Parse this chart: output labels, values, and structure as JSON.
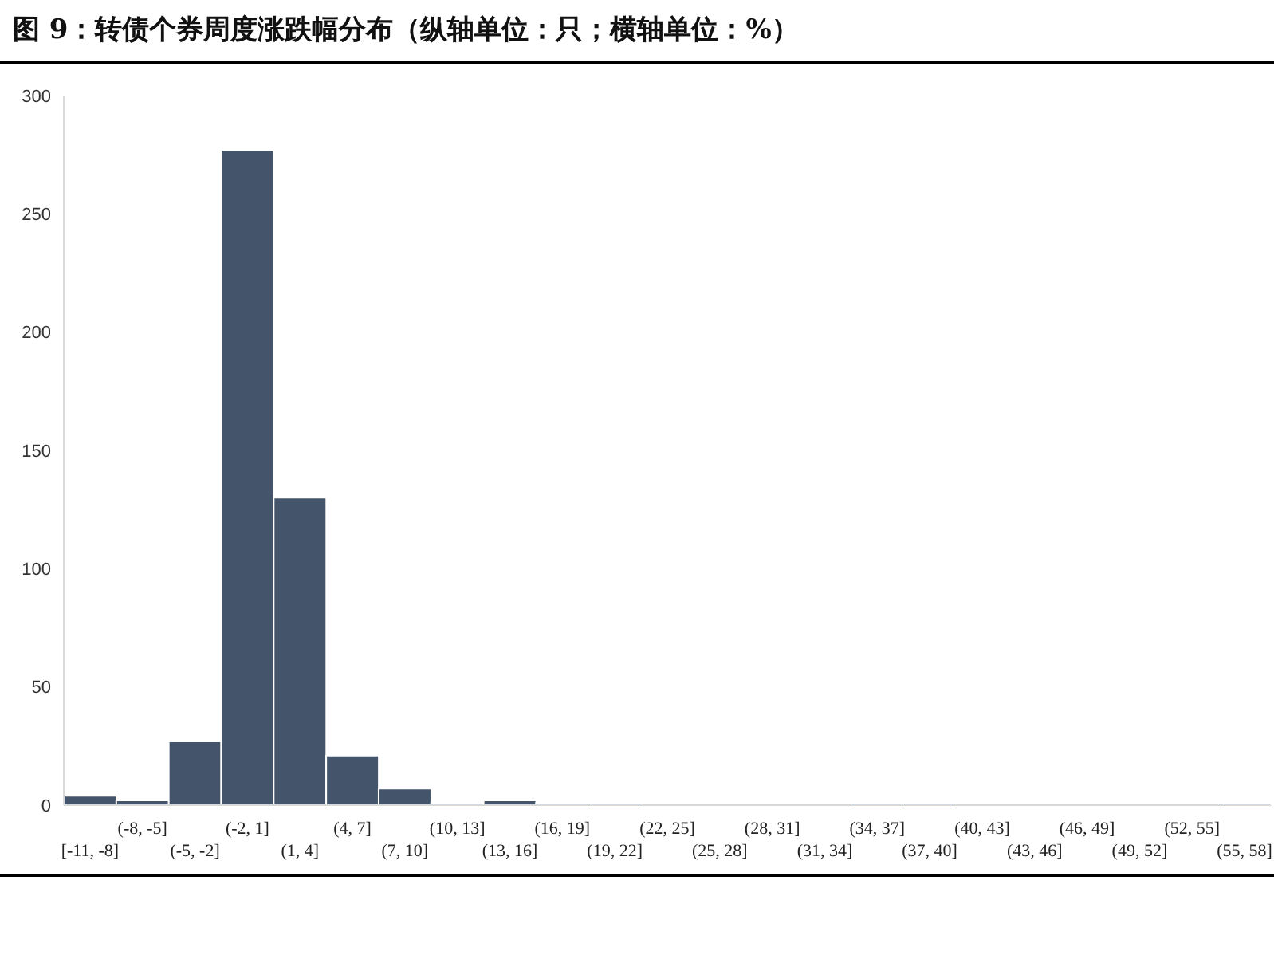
{
  "chart_data": {
    "type": "bar",
    "title": "图 9：转债个券周度涨跌幅分布（纵轴单位：只；横轴单位：%）",
    "categories": [
      "[-11, -8]",
      "(-8, -5]",
      "(-5, -2]",
      "(-2, 1]",
      "(1, 4]",
      "(4, 7]",
      "(7, 10]",
      "(10, 13]",
      "(13, 16]",
      "(16, 19]",
      "(19, 22]",
      "(22, 25]",
      "(25, 28]",
      "(28, 31]",
      "(31, 34]",
      "(34, 37]",
      "(37, 40]",
      "(40, 43]",
      "(43, 46]",
      "(46, 49]",
      "(49, 52]",
      "(52, 55]",
      "(55, 58]"
    ],
    "values": [
      4,
      2,
      27,
      277,
      130,
      21,
      7,
      1,
      2,
      1,
      1,
      0,
      0,
      0,
      0,
      1,
      1,
      0,
      0,
      0,
      0,
      0,
      1
    ],
    "color": "#44546a",
    "ylim": [
      0,
      300
    ],
    "yticks": [
      0,
      50,
      100,
      150,
      200,
      250,
      300
    ],
    "grid": false,
    "legend": false
  }
}
